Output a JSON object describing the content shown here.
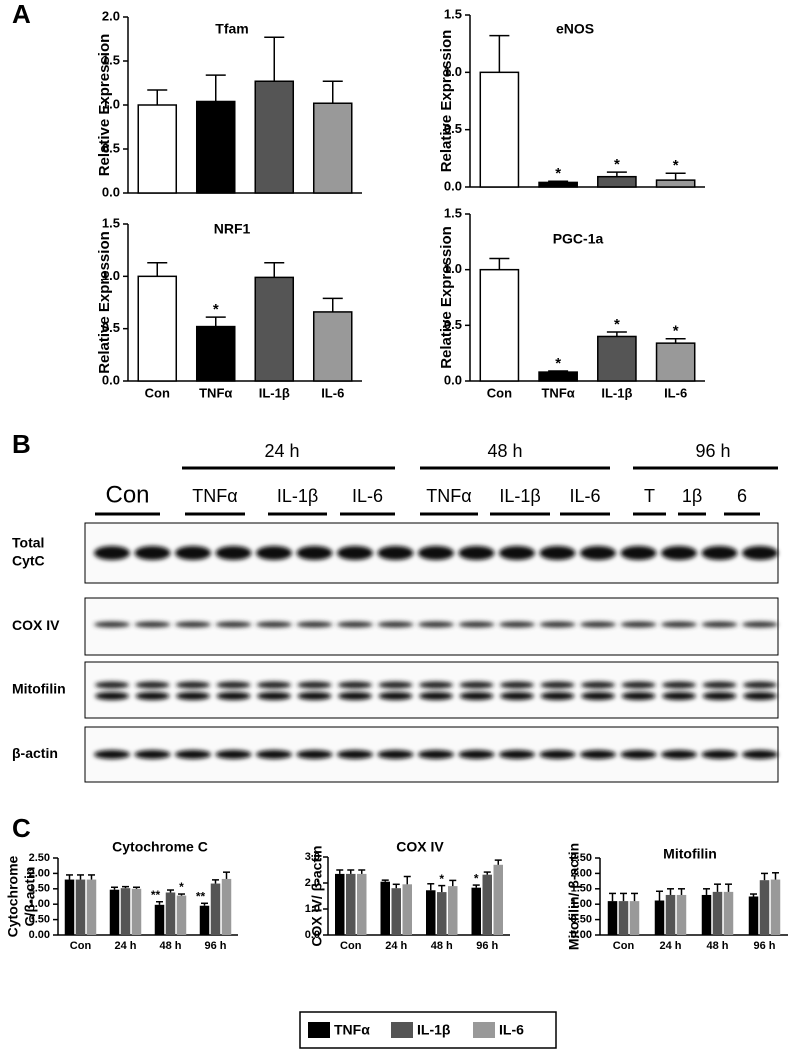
{
  "panel_labels": [
    "A",
    "B",
    "C"
  ],
  "chart_data": [
    {
      "type": "bar",
      "title": "Tfam",
      "ylabel": [
        "Relative Expression"
      ],
      "categories": [
        null,
        null,
        null,
        null
      ],
      "values": [
        1.0,
        1.04,
        1.27,
        1.02
      ],
      "errors": [
        0.17,
        0.3,
        0.5,
        0.25
      ],
      "marks": [
        null,
        null,
        null,
        null
      ],
      "colors": [
        "#ffffff",
        "#000000",
        "#555555",
        "#999999"
      ],
      "ylim": [
        0,
        2
      ],
      "yticks": [
        {
          "value": 0,
          "label": "0.0"
        },
        {
          "value": 0.5,
          "label": "0.5"
        },
        {
          "value": 1,
          "label": "1.0"
        },
        {
          "value": 1.5,
          "label": "1.5"
        },
        {
          "value": 2,
          "label": "2.0"
        }
      ]
    },
    {
      "type": "bar",
      "title": "eNOS",
      "ylabel": [
        "Relative Expression"
      ],
      "categories": [
        null,
        null,
        null,
        null
      ],
      "values": [
        1.0,
        0.04,
        0.09,
        0.06
      ],
      "errors": [
        0.32,
        0.01,
        0.04,
        0.06
      ],
      "marks": [
        null,
        "*",
        "*",
        "*"
      ],
      "colors": [
        "#ffffff",
        "#000000",
        "#555555",
        "#999999"
      ],
      "ylim": [
        0,
        1.5
      ],
      "yticks": [
        {
          "value": 0,
          "label": "0.0"
        },
        {
          "value": 0.5,
          "label": "0.5"
        },
        {
          "value": 1,
          "label": "1.0"
        },
        {
          "value": 1.5,
          "label": "1.5"
        }
      ]
    },
    {
      "type": "bar",
      "title": "NRF1",
      "ylabel": [
        "Relative Expression"
      ],
      "categories": [
        "Con",
        "TNFα",
        "IL-1β",
        "IL-6"
      ],
      "values": [
        1.0,
        0.52,
        0.99,
        0.66
      ],
      "errors": [
        0.13,
        0.09,
        0.14,
        0.13
      ],
      "marks": [
        null,
        "*",
        null,
        null
      ],
      "colors": [
        "#ffffff",
        "#000000",
        "#555555",
        "#999999"
      ],
      "ylim": [
        0,
        1.5
      ],
      "yticks": [
        {
          "value": 0,
          "label": "0.0"
        },
        {
          "value": 0.5,
          "label": "0.5"
        },
        {
          "value": 1,
          "label": "1.0"
        },
        {
          "value": 1.5,
          "label": "1.5"
        }
      ]
    },
    {
      "type": "bar",
      "title": "PGC-1a",
      "ylabel": [
        "Relative Expression"
      ],
      "categories": [
        "Con",
        "TNFα",
        "IL-1β",
        "IL-6"
      ],
      "values": [
        1.0,
        0.08,
        0.4,
        0.34
      ],
      "errors": [
        0.1,
        0.01,
        0.04,
        0.04
      ],
      "marks": [
        null,
        "*",
        "*",
        "*"
      ],
      "colors": [
        "#ffffff",
        "#000000",
        "#555555",
        "#999999"
      ],
      "ylim": [
        0,
        1.5
      ],
      "yticks": [
        {
          "value": 0,
          "label": "0.0"
        },
        {
          "value": 0.5,
          "label": "0.5"
        },
        {
          "value": 1,
          "label": "1.0"
        },
        {
          "value": 1.5,
          "label": "1.5"
        }
      ]
    },
    {
      "type": "grouped",
      "title": "Cytochrome C",
      "ylabel": [
        "Cytochrome",
        "C/β-actin"
      ],
      "categories": [
        "Con",
        "24 h",
        "48 h",
        "96 h"
      ],
      "series": [
        {
          "name": "TNFα",
          "color": "#000000",
          "values": [
            1.8,
            1.47,
            0.98,
            0.95
          ],
          "errors": [
            0.15,
            0.08,
            0.1,
            0.08
          ],
          "marks": [
            null,
            null,
            "**",
            "**"
          ]
        },
        {
          "name": "IL-1β",
          "color": "#555555",
          "values": [
            1.8,
            1.52,
            1.38,
            1.67
          ],
          "errors": [
            0.15,
            0.05,
            0.08,
            0.12
          ],
          "marks": [
            null,
            null,
            null,
            null
          ]
        },
        {
          "name": "IL-6",
          "color": "#999999",
          "values": [
            1.8,
            1.5,
            1.28,
            1.82
          ],
          "errors": [
            0.15,
            0.05,
            0.05,
            0.22
          ],
          "marks": [
            null,
            null,
            "*",
            null
          ]
        }
      ],
      "ylim": [
        0,
        2.5
      ],
      "yticks": [
        {
          "value": 0,
          "label": "0.00"
        },
        {
          "value": 0.5,
          "label": "0.50"
        },
        {
          "value": 1,
          "label": "1.00"
        },
        {
          "value": 1.5,
          "label": "1.50"
        },
        {
          "value": 2,
          "label": "2.00"
        },
        {
          "value": 2.5,
          "label": "2.50"
        }
      ]
    },
    {
      "type": "grouped",
      "title": "COX IV",
      "ylabel": [
        "COX IV/ β-actin"
      ],
      "categories": [
        "Con",
        "24 h",
        "48 h",
        "96 h"
      ],
      "series": [
        {
          "color": "#000000",
          "values": [
            2.35,
            2.05,
            1.72,
            1.82
          ],
          "errors": [
            0.15,
            0.06,
            0.25,
            0.1
          ],
          "marks": [
            null,
            null,
            null,
            "*"
          ]
        },
        {
          "color": "#555555",
          "values": [
            2.35,
            1.8,
            1.65,
            2.32
          ],
          "errors": [
            0.15,
            0.15,
            0.25,
            0.1
          ],
          "marks": [
            null,
            null,
            "*",
            null
          ]
        },
        {
          "color": "#999999",
          "values": [
            2.35,
            1.95,
            1.88,
            2.7
          ],
          "errors": [
            0.15,
            0.3,
            0.22,
            0.18
          ],
          "marks": [
            null,
            null,
            null,
            null
          ]
        }
      ],
      "ylim": [
        0,
        3
      ],
      "yticks": [
        {
          "value": 0,
          "label": "0.0"
        },
        {
          "value": 1,
          "label": "1.0"
        },
        {
          "value": 2,
          "label": "2.0"
        },
        {
          "value": 3,
          "label": "3.0"
        }
      ]
    },
    {
      "type": "grouped",
      "title": "Mitofilin",
      "ylabel": [
        "Mitofilin/ β-actin"
      ],
      "categories": [
        "Con",
        "24 h",
        "48 h",
        "96 h"
      ],
      "series": [
        {
          "color": "#000000",
          "values": [
            1.1,
            1.12,
            1.3,
            1.25
          ],
          "errors": [
            0.25,
            0.3,
            0.2,
            0.08
          ],
          "marks": [
            null,
            null,
            null,
            null
          ]
        },
        {
          "color": "#555555",
          "values": [
            1.1,
            1.3,
            1.4,
            1.78
          ],
          "errors": [
            0.25,
            0.2,
            0.25,
            0.22
          ],
          "marks": [
            null,
            null,
            null,
            null
          ]
        },
        {
          "color": "#999999",
          "values": [
            1.1,
            1.3,
            1.4,
            1.8
          ],
          "errors": [
            0.25,
            0.2,
            0.25,
            0.22
          ],
          "marks": [
            null,
            null,
            null,
            null
          ]
        }
      ],
      "ylim": [
        0,
        2.5
      ],
      "yticks": [
        {
          "value": 0,
          "label": "0.00"
        },
        {
          "value": 0.5,
          "label": "0.50"
        },
        {
          "value": 1,
          "label": "1.00"
        },
        {
          "value": 1.5,
          "label": "1.50"
        },
        {
          "value": 2,
          "label": "2.00"
        },
        {
          "value": 2.5,
          "label": "2.50"
        }
      ]
    }
  ],
  "blot": {
    "times": [
      "24 h",
      "48 h",
      "96 h"
    ],
    "lanes": [
      "Con",
      "TNFα",
      "IL-1β",
      "IL-6",
      "TNFα",
      "IL-1β",
      "IL-6",
      "T",
      "1β",
      "6"
    ],
    "rows": [
      [
        "Total",
        "CytC"
      ],
      [
        "COX IV"
      ],
      [
        "Mitofilin"
      ],
      [
        "β-actin"
      ]
    ]
  }
}
